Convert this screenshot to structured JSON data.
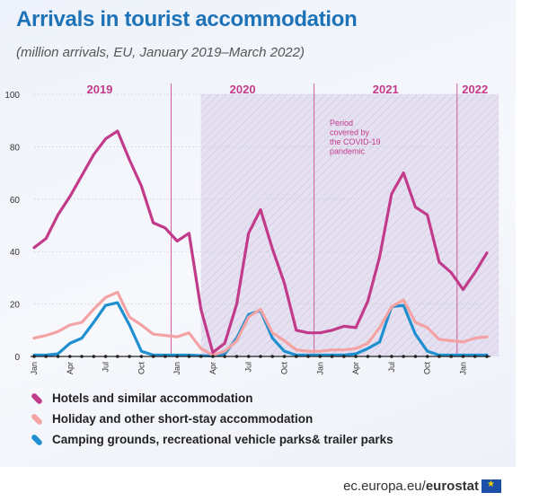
{
  "title": "Arrivals in tourist accommodation",
  "subtitle": "(million arrivals, EU, January 2019–March 2022)",
  "footer": {
    "site": "ec.europa.eu/",
    "brand": "eurostat"
  },
  "colors": {
    "hotels": "#c23b8a",
    "holiday": "#f4a3a4",
    "camping": "#1f8fd0",
    "year_label": "#c23b8a",
    "covid_shade": "#d9d2ec"
  },
  "chart_data": {
    "type": "line",
    "ylim": [
      0,
      100
    ],
    "yticks": [
      0,
      20,
      40,
      60,
      80,
      100
    ],
    "x_tick_labels": [
      "Jan",
      "Apr",
      "Jul",
      "Oct",
      "Jan",
      "Apr",
      "Jul",
      "Oct",
      "Jan",
      "Apr",
      "Jul",
      "Oct",
      "Jan"
    ],
    "x_tick_months": [
      0,
      3,
      6,
      9,
      12,
      15,
      18,
      21,
      24,
      27,
      30,
      33,
      36
    ],
    "years": [
      {
        "label": "2019",
        "start": 0,
        "end": 12
      },
      {
        "label": "2020",
        "start": 12,
        "end": 24
      },
      {
        "label": "2021",
        "start": 24,
        "end": 36
      },
      {
        "label": "2022",
        "start": 36,
        "end": 39
      }
    ],
    "annotation": {
      "text": "Period covered by the COVID-19 pandemic",
      "lines": [
        "Period",
        "covered by",
        "the COVID-19",
        "pandemic"
      ],
      "start_month": 14,
      "end_month": 39
    },
    "series": [
      {
        "name": "Hotels and similar accommodation",
        "color": "#c23b8a",
        "values": [
          41.5,
          45,
          54,
          61,
          69,
          77,
          83,
          86,
          75,
          65,
          51,
          49,
          44,
          47,
          18,
          1.5,
          5,
          20,
          47,
          56,
          41,
          28,
          10,
          9,
          9,
          10,
          11.5,
          11,
          21,
          38,
          62,
          70,
          57,
          54,
          36,
          32,
          25.5,
          32,
          39.5
        ]
      },
      {
        "name": "Holiday and other short-stay accommodation",
        "color": "#f4a3a4",
        "values": [
          7,
          8,
          9.5,
          12,
          13,
          18,
          22.5,
          24.5,
          15,
          12,
          8.5,
          8,
          7.5,
          9,
          3,
          0.5,
          2,
          6,
          15,
          18,
          9,
          6,
          2.5,
          2,
          2,
          2.5,
          2.5,
          3,
          5,
          11,
          19,
          21.5,
          13,
          11,
          6.5,
          6,
          5.5,
          7,
          7.5
        ]
      },
      {
        "name": "Camping grounds, recreational vehicle parks& trailer parks",
        "color": "#1f8fd0",
        "values": [
          0.5,
          0.5,
          1,
          5,
          7,
          13,
          19.5,
          20.5,
          12,
          2,
          0.5,
          0.5,
          0.5,
          0.5,
          0.3,
          0.2,
          1,
          7,
          16,
          17.5,
          7,
          2,
          0.5,
          0.5,
          0.5,
          0.5,
          0.5,
          1,
          3,
          5.5,
          19,
          19.5,
          8.5,
          2,
          0.5,
          0.5,
          0.5,
          0.5,
          0.5
        ]
      }
    ]
  }
}
